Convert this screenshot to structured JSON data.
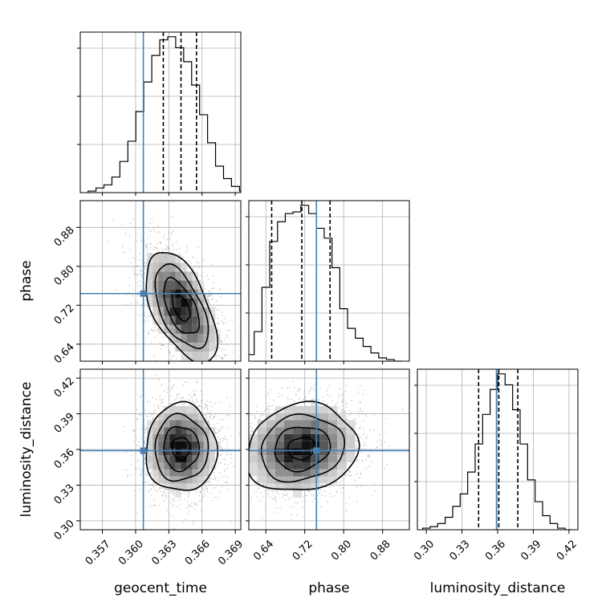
{
  "chart_data": {
    "type": "corner",
    "parameters": [
      "geocent_time",
      "phase",
      "luminosity_distance"
    ],
    "axis_labels": {
      "geocent_time": "geocent_time",
      "phase": "phase",
      "luminosity_distance": "luminosity_distance"
    },
    "ranges": {
      "geocent_time": [
        0.355,
        0.3695
      ],
      "phase": [
        0.605,
        0.935
      ],
      "luminosity_distance": [
        0.2925,
        0.4275
      ]
    },
    "ticks": {
      "geocent_time": [
        "0.357",
        "0.360",
        "0.363",
        "0.366",
        "0.369"
      ],
      "phase": [
        "0.64",
        "0.72",
        "0.80",
        "0.88"
      ],
      "luminosity_distance": [
        "0.30",
        "0.33",
        "0.36",
        "0.39",
        "0.42"
      ]
    },
    "truths": {
      "geocent_time": 0.3607,
      "phase": 0.744,
      "luminosity_distance": 0.359
    },
    "quantiles": {
      "geocent_time": [
        0.3625,
        0.3641,
        0.3655
      ],
      "phase": [
        0.652,
        0.714,
        0.772
      ],
      "luminosity_distance": [
        0.344,
        0.361,
        0.377
      ]
    },
    "histograms": {
      "geocent_time": {
        "edges": [
          0.3557,
          0.35642,
          0.35714,
          0.35786,
          0.35858,
          0.3593,
          0.36002,
          0.36074,
          0.36146,
          0.36218,
          0.3629,
          0.36362,
          0.36434,
          0.36506,
          0.36578,
          0.3665,
          0.36722,
          0.36794,
          0.36866,
          0.36938,
          0.3701
        ],
        "counts": [
          1,
          3,
          5,
          10,
          20,
          33,
          52,
          71,
          88,
          98,
          100,
          93,
          84,
          69,
          50,
          32,
          17,
          9,
          4,
          1
        ]
      },
      "phase": {
        "edges": [
          0.6,
          0.616,
          0.632,
          0.648,
          0.664,
          0.68,
          0.696,
          0.712,
          0.728,
          0.744,
          0.76,
          0.776,
          0.792,
          0.808,
          0.824,
          0.84,
          0.856,
          0.872,
          0.888,
          0.904,
          0.92
        ],
        "counts": [
          4,
          18,
          45,
          73,
          85,
          90,
          91,
          95,
          90,
          81,
          75,
          57,
          32,
          20,
          14,
          9,
          5,
          2,
          1,
          0
        ]
      },
      "luminosity_distance": {
        "edges": [
          0.297,
          0.3033,
          0.3096,
          0.3159,
          0.3222,
          0.3285,
          0.3348,
          0.3411,
          0.3474,
          0.3537,
          0.36,
          0.3663,
          0.3726,
          0.3789,
          0.3852,
          0.3915,
          0.3978,
          0.4041,
          0.4104,
          0.4167,
          0.423
        ],
        "counts": [
          1,
          2,
          4,
          8,
          15,
          23,
          37,
          55,
          74,
          90,
          100,
          93,
          77,
          55,
          32,
          18,
          9,
          4,
          1,
          0
        ]
      }
    },
    "pairs": [
      {
        "x": "geocent_time",
        "y": "phase",
        "center": [
          0.3641,
          0.716
        ],
        "sigma": [
          0.0016,
          0.057
        ],
        "correlation": -0.55
      },
      {
        "x": "geocent_time",
        "y": "luminosity_distance",
        "center": [
          0.3641,
          0.361
        ],
        "sigma": [
          0.0016,
          0.0185
        ],
        "correlation": 0.0
      },
      {
        "x": "phase",
        "y": "luminosity_distance",
        "center": [
          0.714,
          0.361
        ],
        "sigma": [
          0.057,
          0.0185
        ],
        "correlation": 0.12
      }
    ],
    "colors": {
      "truth": "#4682b4",
      "histogram": "#000000",
      "grid": "#b0b0b0",
      "samples": "#7f7f7f"
    },
    "grid": true
  }
}
